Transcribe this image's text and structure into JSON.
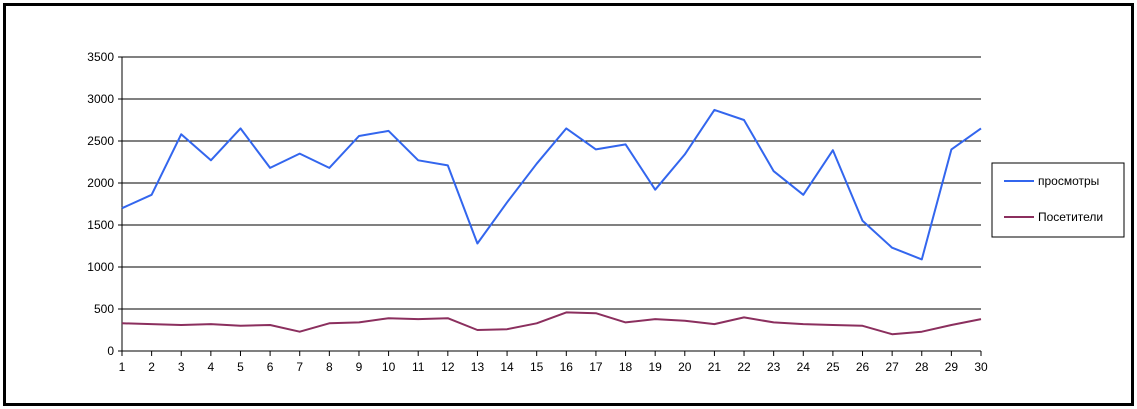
{
  "chart_data": {
    "type": "line",
    "title": "",
    "xlabel": "",
    "ylabel": "",
    "x": [
      1,
      2,
      3,
      4,
      5,
      6,
      7,
      8,
      9,
      10,
      11,
      12,
      13,
      14,
      15,
      16,
      17,
      18,
      19,
      20,
      21,
      22,
      23,
      24,
      25,
      26,
      27,
      28,
      29,
      30
    ],
    "ylim": [
      0,
      3500
    ],
    "yticks": [
      0,
      500,
      1000,
      1500,
      2000,
      2500,
      3000,
      3500
    ],
    "grid": true,
    "legend_position": "right",
    "series": [
      {
        "name": "просмотры",
        "color": "#3366ee",
        "values": [
          1700,
          1860,
          2580,
          2270,
          2650,
          2180,
          2350,
          2180,
          2560,
          2620,
          2270,
          2210,
          1280,
          1770,
          2230,
          2650,
          2400,
          2460,
          1920,
          2340,
          2870,
          2750,
          2140,
          1860,
          2390,
          1550,
          1230,
          1090,
          2400,
          2650
        ]
      },
      {
        "name": "Посетители",
        "color": "#8b2f5e",
        "values": [
          330,
          320,
          310,
          320,
          300,
          310,
          230,
          330,
          340,
          390,
          380,
          390,
          250,
          260,
          330,
          460,
          450,
          340,
          380,
          360,
          320,
          400,
          340,
          320,
          310,
          300,
          200,
          230,
          310,
          380
        ]
      }
    ]
  }
}
